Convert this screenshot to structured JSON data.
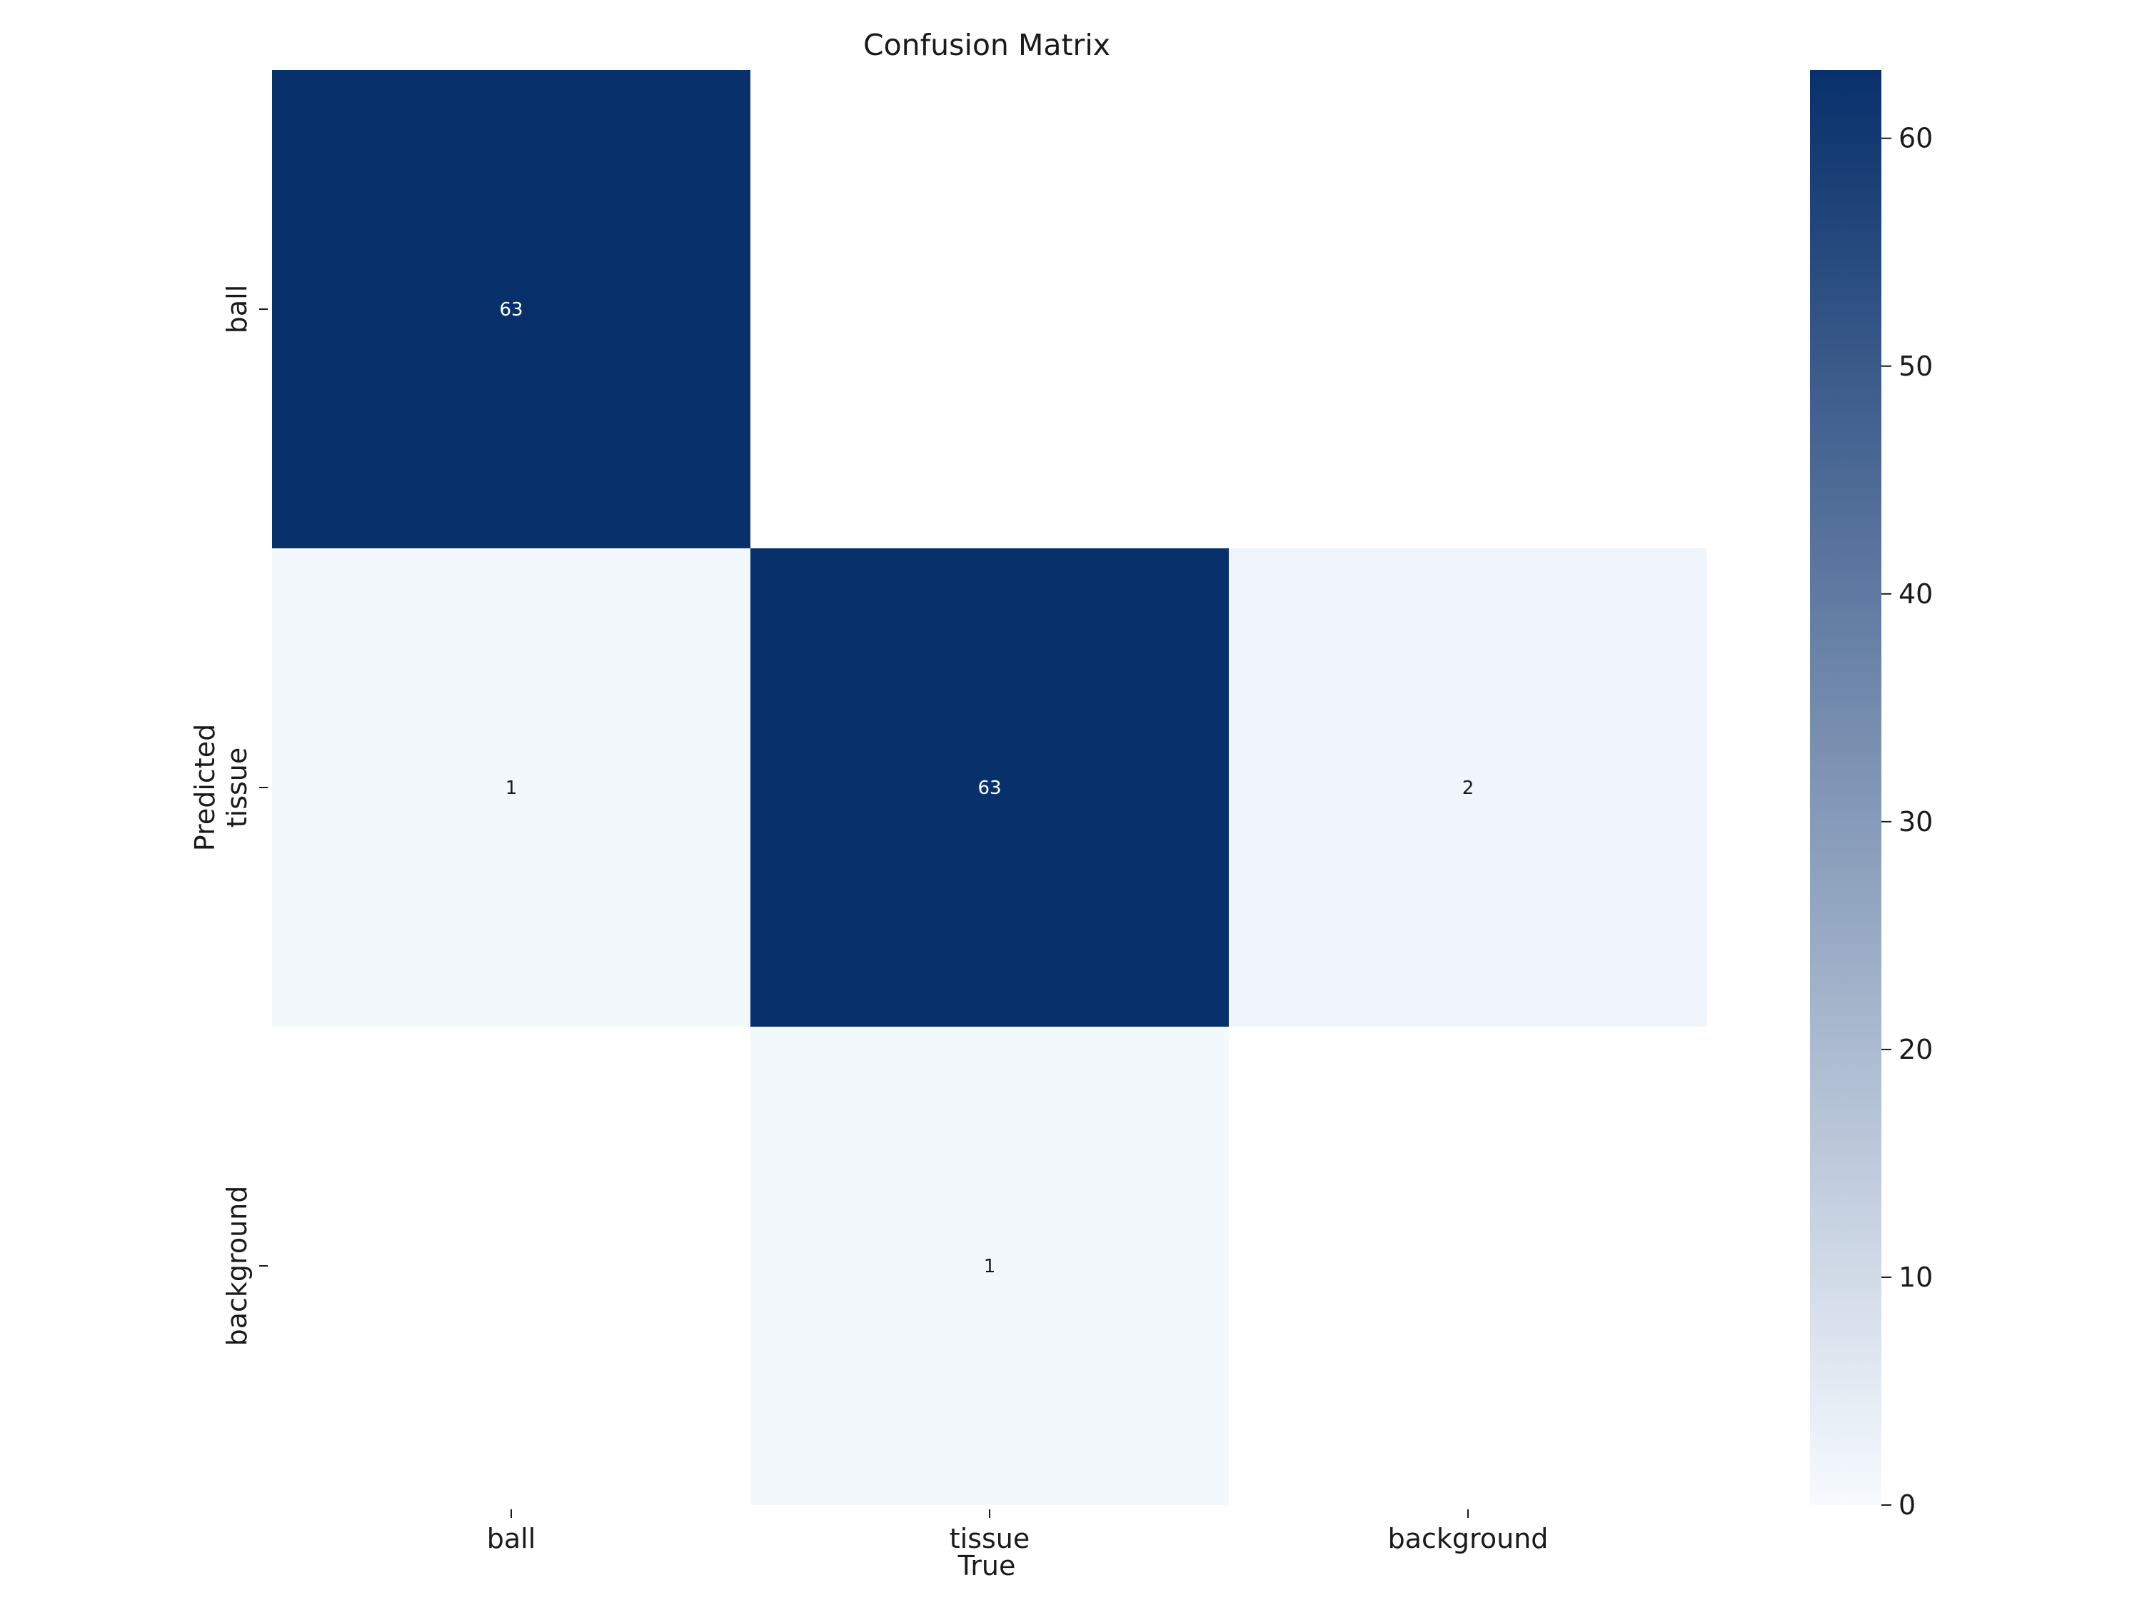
{
  "chart_data": {
    "type": "heatmap",
    "title": "Confusion Matrix",
    "xlabel": "True",
    "ylabel": "Predicted",
    "x_categories": [
      "ball",
      "tissue",
      "background"
    ],
    "y_categories": [
      "ball",
      "tissue",
      "background"
    ],
    "values": [
      [
        63,
        null,
        null
      ],
      [
        1,
        63,
        2
      ],
      [
        null,
        1,
        null
      ]
    ],
    "colormap": "Blues",
    "colors": {
      "min": "#f7fbff",
      "max": "#08306b"
    },
    "colorbar": {
      "range": [
        0,
        63
      ],
      "ticks": [
        0,
        10,
        20,
        30,
        40,
        50,
        60
      ]
    },
    "grid": false,
    "legend": "right"
  }
}
